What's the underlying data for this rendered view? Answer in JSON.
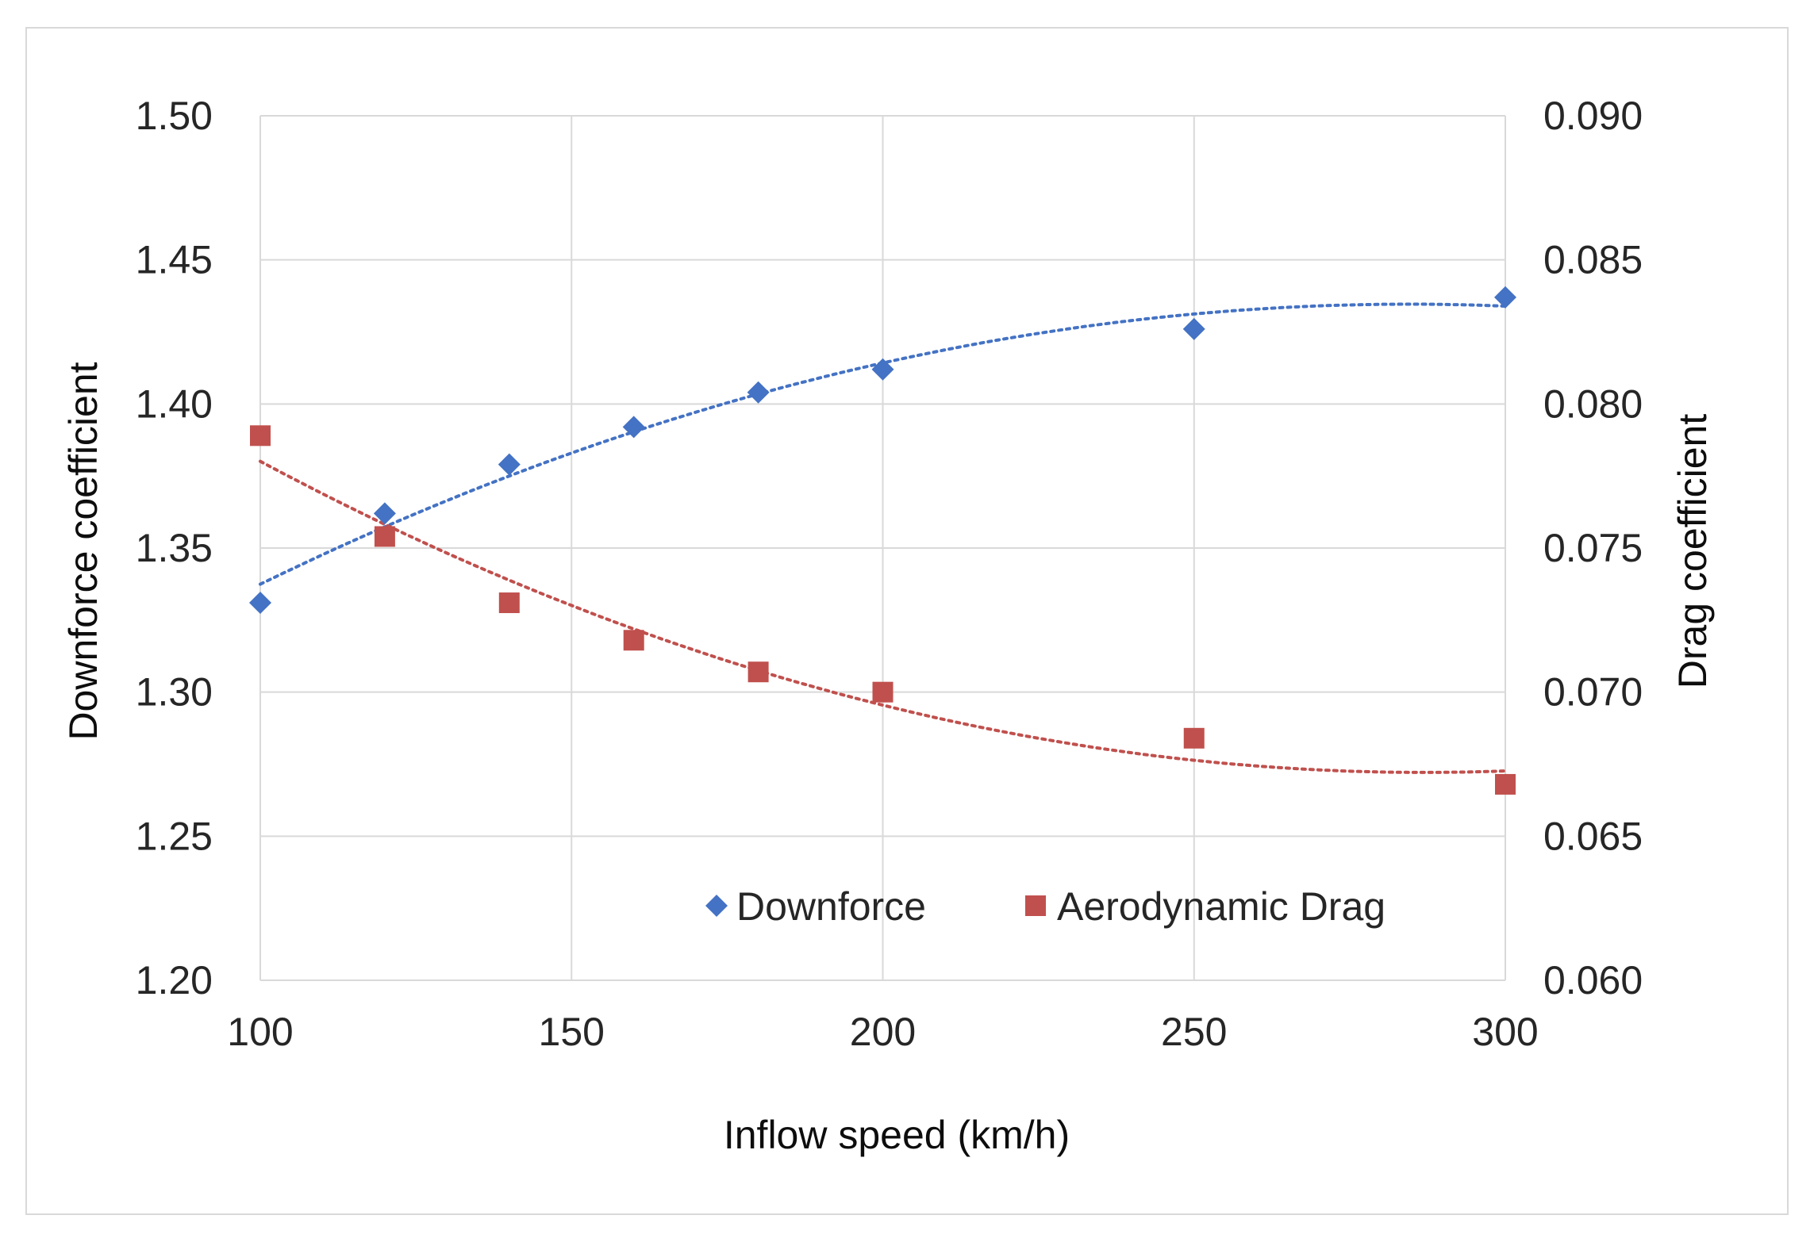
{
  "chart_data": {
    "type": "scatter",
    "title": "",
    "xlabel": "Inflow speed (km/h)",
    "ylabel": "Downforce coefficient",
    "y2label": "Drag coefficient",
    "xlim": [
      100,
      300
    ],
    "ylim": [
      1.2,
      1.5
    ],
    "y2lim": [
      0.06,
      0.09
    ],
    "x_ticks": [
      "100",
      "150",
      "200",
      "250",
      "300"
    ],
    "y_ticks": [
      "1.20",
      "1.25",
      "1.30",
      "1.35",
      "1.40",
      "1.45",
      "1.50"
    ],
    "y2_ticks": [
      "0.060",
      "0.065",
      "0.070",
      "0.075",
      "0.080",
      "0.085",
      "0.090"
    ],
    "grid": true,
    "legend_position": "bottom-right-inside",
    "series": [
      {
        "name": "Downforce",
        "axis": "left",
        "marker": "diamond",
        "color": "#4472C4",
        "trendline": "dotted polynomial",
        "x": [
          100,
          120,
          140,
          160,
          180,
          200,
          250,
          300
        ],
        "y": [
          1.331,
          1.362,
          1.379,
          1.392,
          1.404,
          1.412,
          1.426,
          1.437
        ]
      },
      {
        "name": "Aerodynamic Drag",
        "axis": "right",
        "marker": "square",
        "color": "#C0504D",
        "trendline": "dotted polynomial",
        "x": [
          100,
          120,
          140,
          160,
          180,
          200,
          250,
          300
        ],
        "y": [
          0.0789,
          0.0754,
          0.0731,
          0.0718,
          0.0707,
          0.07,
          0.0684,
          0.0668
        ]
      }
    ]
  }
}
